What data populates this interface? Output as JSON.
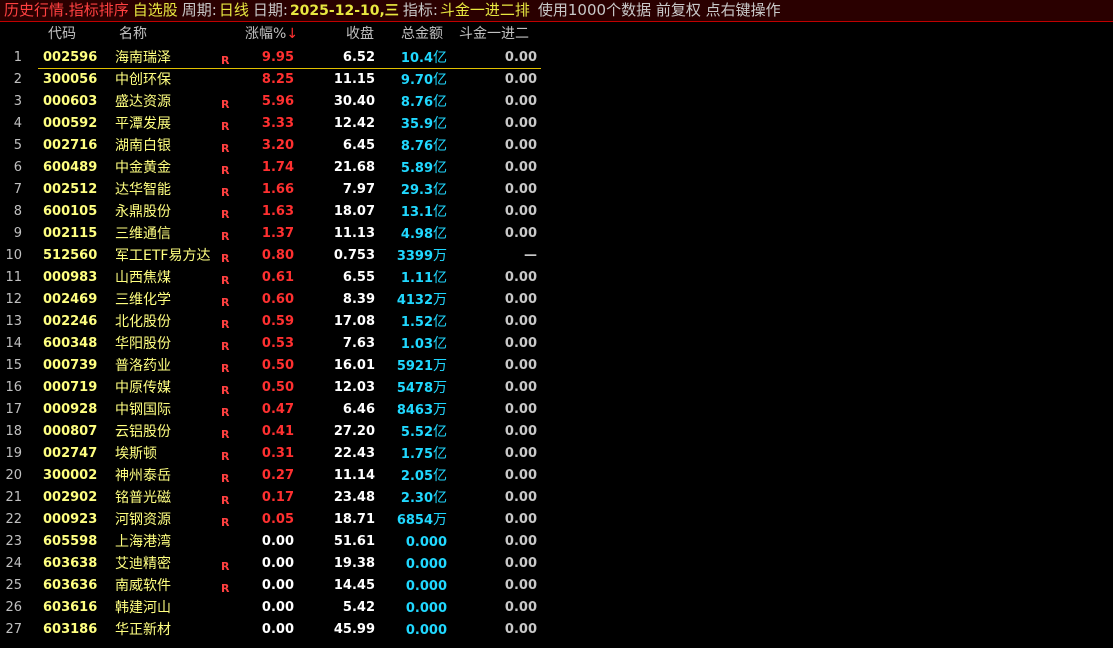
{
  "title_bar": {
    "mode": "历史行情.指标排序",
    "block": "自选股",
    "period_label": "周期:",
    "period": "日线",
    "date_label": "日期:",
    "date": "2025-12-10,三",
    "indicator_label": "指标:",
    "indicator": "斗金一进二排",
    "info": "使用1000个数据 前复权 点右键操作"
  },
  "columns": {
    "code": "代码",
    "name": "名称",
    "change": "涨幅%",
    "sort_arrow": "↓",
    "close": "收盘",
    "amount": "总金额",
    "indicator": "斗金一进二"
  },
  "colors": {
    "up": "#ff3030",
    "code": "#ffff80",
    "amount": "#20d8ff",
    "selection_line": "#e0c000",
    "title_bg": "#2a0000"
  },
  "selected_row": 1,
  "rows": [
    {
      "i": "1",
      "code": "002596",
      "name": "海南瑞泽",
      "r": "R",
      "chg": "9.95",
      "close": "6.52",
      "amt": "10.4",
      "unit": "亿",
      "last": "0.00"
    },
    {
      "i": "2",
      "code": "300056",
      "name": "中创环保",
      "r": "",
      "chg": "8.25",
      "close": "11.15",
      "amt": "9.70",
      "unit": "亿",
      "last": "0.00"
    },
    {
      "i": "3",
      "code": "000603",
      "name": "盛达资源",
      "r": "R",
      "chg": "5.96",
      "close": "30.40",
      "amt": "8.76",
      "unit": "亿",
      "last": "0.00"
    },
    {
      "i": "4",
      "code": "000592",
      "name": "平潭发展",
      "r": "R",
      "chg": "3.33",
      "close": "12.42",
      "amt": "35.9",
      "unit": "亿",
      "last": "0.00"
    },
    {
      "i": "5",
      "code": "002716",
      "name": "湖南白银",
      "r": "R",
      "chg": "3.20",
      "close": "6.45",
      "amt": "8.76",
      "unit": "亿",
      "last": "0.00"
    },
    {
      "i": "6",
      "code": "600489",
      "name": "中金黄金",
      "r": "R",
      "chg": "1.74",
      "close": "21.68",
      "amt": "5.89",
      "unit": "亿",
      "last": "0.00"
    },
    {
      "i": "7",
      "code": "002512",
      "name": "达华智能",
      "r": "R",
      "chg": "1.66",
      "close": "7.97",
      "amt": "29.3",
      "unit": "亿",
      "last": "0.00"
    },
    {
      "i": "8",
      "code": "600105",
      "name": "永鼎股份",
      "r": "R",
      "chg": "1.63",
      "close": "18.07",
      "amt": "13.1",
      "unit": "亿",
      "last": "0.00"
    },
    {
      "i": "9",
      "code": "002115",
      "name": "三维通信",
      "r": "R",
      "chg": "1.37",
      "close": "11.13",
      "amt": "4.98",
      "unit": "亿",
      "last": "0.00"
    },
    {
      "i": "10",
      "code": "512560",
      "name": "军工ETF易方达",
      "r": "R",
      "chg": "0.80",
      "close": "0.753",
      "amt": "3399",
      "unit": "万",
      "last": "—"
    },
    {
      "i": "11",
      "code": "000983",
      "name": "山西焦煤",
      "r": "R",
      "chg": "0.61",
      "close": "6.55",
      "amt": "1.11",
      "unit": "亿",
      "last": "0.00"
    },
    {
      "i": "12",
      "code": "002469",
      "name": "三维化学",
      "r": "R",
      "chg": "0.60",
      "close": "8.39",
      "amt": "4132",
      "unit": "万",
      "last": "0.00"
    },
    {
      "i": "13",
      "code": "002246",
      "name": "北化股份",
      "r": "R",
      "chg": "0.59",
      "close": "17.08",
      "amt": "1.52",
      "unit": "亿",
      "last": "0.00"
    },
    {
      "i": "14",
      "code": "600348",
      "name": "华阳股份",
      "r": "R",
      "chg": "0.53",
      "close": "7.63",
      "amt": "1.03",
      "unit": "亿",
      "last": "0.00"
    },
    {
      "i": "15",
      "code": "000739",
      "name": "普洛药业",
      "r": "R",
      "chg": "0.50",
      "close": "16.01",
      "amt": "5921",
      "unit": "万",
      "last": "0.00"
    },
    {
      "i": "16",
      "code": "000719",
      "name": "中原传媒",
      "r": "R",
      "chg": "0.50",
      "close": "12.03",
      "amt": "5478",
      "unit": "万",
      "last": "0.00"
    },
    {
      "i": "17",
      "code": "000928",
      "name": "中钢国际",
      "r": "R",
      "chg": "0.47",
      "close": "6.46",
      "amt": "8463",
      "unit": "万",
      "last": "0.00"
    },
    {
      "i": "18",
      "code": "000807",
      "name": "云铝股份",
      "r": "R",
      "chg": "0.41",
      "close": "27.20",
      "amt": "5.52",
      "unit": "亿",
      "last": "0.00"
    },
    {
      "i": "19",
      "code": "002747",
      "name": "埃斯顿",
      "r": "R",
      "chg": "0.31",
      "close": "22.43",
      "amt": "1.75",
      "unit": "亿",
      "last": "0.00"
    },
    {
      "i": "20",
      "code": "300002",
      "name": "神州泰岳",
      "r": "R",
      "chg": "0.27",
      "close": "11.14",
      "amt": "2.05",
      "unit": "亿",
      "last": "0.00"
    },
    {
      "i": "21",
      "code": "002902",
      "name": "铭普光磁",
      "r": "R",
      "chg": "0.17",
      "close": "23.48",
      "amt": "2.30",
      "unit": "亿",
      "last": "0.00"
    },
    {
      "i": "22",
      "code": "000923",
      "name": "河钢资源",
      "r": "R",
      "chg": "0.05",
      "close": "18.71",
      "amt": "6854",
      "unit": "万",
      "last": "0.00"
    },
    {
      "i": "23",
      "code": "605598",
      "name": "上海港湾",
      "r": "",
      "chg": "0.00",
      "close": "51.61",
      "amt": "0.000",
      "unit": "",
      "last": "0.00"
    },
    {
      "i": "24",
      "code": "603638",
      "name": "艾迪精密",
      "r": "R",
      "chg": "0.00",
      "close": "19.38",
      "amt": "0.000",
      "unit": "",
      "last": "0.00"
    },
    {
      "i": "25",
      "code": "603636",
      "name": "南威软件",
      "r": "R",
      "chg": "0.00",
      "close": "14.45",
      "amt": "0.000",
      "unit": "",
      "last": "0.00"
    },
    {
      "i": "26",
      "code": "603616",
      "name": "韩建河山",
      "r": "",
      "chg": "0.00",
      "close": "5.42",
      "amt": "0.000",
      "unit": "",
      "last": "0.00"
    },
    {
      "i": "27",
      "code": "603186",
      "name": "华正新材",
      "r": "",
      "chg": "0.00",
      "close": "45.99",
      "amt": "0.000",
      "unit": "",
      "last": "0.00"
    }
  ]
}
